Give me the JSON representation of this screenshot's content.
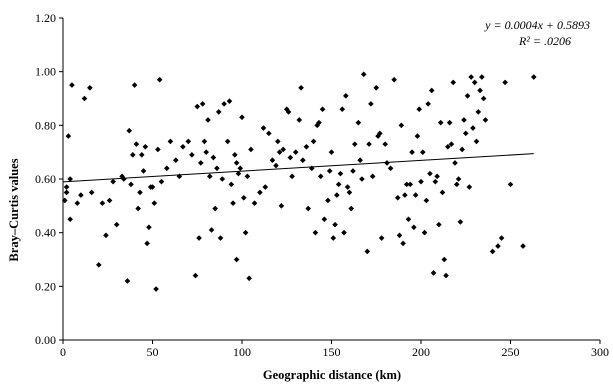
{
  "chart_data": {
    "type": "scatter",
    "title": "",
    "xlabel": "Geographic distance (km)",
    "ylabel": "Bray–Curtis values",
    "xlim": [
      0,
      300
    ],
    "ylim": [
      0,
      1.2
    ],
    "x_ticks": [
      "0",
      "50",
      "100",
      "150",
      "200",
      "250",
      "300"
    ],
    "y_ticks": [
      "0.00",
      "0.20",
      "0.40",
      "0.60",
      "0.80",
      "1.00",
      "1.20"
    ],
    "grid": false,
    "legend": "none",
    "marker": "diamond",
    "marker_color": "#000000",
    "trendline": {
      "slope": 0.0004,
      "intercept": 0.5893,
      "x_range": [
        0,
        263
      ]
    },
    "annotations": {
      "equation": "y = 0.0004x + 0.5893",
      "r_squared": "R² = .0206"
    },
    "points": [
      [
        1,
        0.52
      ],
      [
        2,
        0.57
      ],
      [
        2,
        0.55
      ],
      [
        3,
        0.76
      ],
      [
        4,
        0.45
      ],
      [
        4,
        0.6
      ],
      [
        5,
        0.95
      ],
      [
        8,
        0.51
      ],
      [
        10,
        0.54
      ],
      [
        12,
        0.9
      ],
      [
        15,
        0.94
      ],
      [
        16,
        0.55
      ],
      [
        20,
        0.28
      ],
      [
        22,
        0.51
      ],
      [
        24,
        0.39
      ],
      [
        26,
        0.52
      ],
      [
        28,
        0.59
      ],
      [
        30,
        0.43
      ],
      [
        33,
        0.61
      ],
      [
        34,
        0.6
      ],
      [
        36,
        0.22
      ],
      [
        37,
        0.78
      ],
      [
        38,
        0.58
      ],
      [
        39,
        0.69
      ],
      [
        40,
        0.95
      ],
      [
        41,
        0.73
      ],
      [
        42,
        0.49
      ],
      [
        43,
        0.55
      ],
      [
        44,
        0.69
      ],
      [
        45,
        0.63
      ],
      [
        46,
        0.72
      ],
      [
        47,
        0.36
      ],
      [
        48,
        0.42
      ],
      [
        49,
        0.57
      ],
      [
        50,
        0.57
      ],
      [
        51,
        0.51
      ],
      [
        52,
        0.19
      ],
      [
        53,
        0.71
      ],
      [
        54,
        0.97
      ],
      [
        55,
        0.59
      ],
      [
        58,
        0.64
      ],
      [
        60,
        0.74
      ],
      [
        63,
        0.67
      ],
      [
        65,
        0.61
      ],
      [
        67,
        0.72
      ],
      [
        70,
        0.74
      ],
      [
        72,
        0.69
      ],
      [
        74,
        0.24
      ],
      [
        75,
        0.87
      ],
      [
        76,
        0.38
      ],
      [
        77,
        0.66
      ],
      [
        78,
        0.88
      ],
      [
        79,
        0.74
      ],
      [
        80,
        0.7
      ],
      [
        81,
        0.82
      ],
      [
        82,
        0.61
      ],
      [
        83,
        0.41
      ],
      [
        84,
        0.68
      ],
      [
        85,
        0.49
      ],
      [
        86,
        0.64
      ],
      [
        87,
        0.85
      ],
      [
        88,
        0.38
      ],
      [
        89,
        0.6
      ],
      [
        90,
        0.88
      ],
      [
        92,
        0.74
      ],
      [
        93,
        0.89
      ],
      [
        94,
        0.58
      ],
      [
        95,
        0.51
      ],
      [
        96,
        0.69
      ],
      [
        97,
        0.3
      ],
      [
        97,
        0.66
      ],
      [
        98,
        0.62
      ],
      [
        99,
        0.64
      ],
      [
        100,
        0.83
      ],
      [
        101,
        0.53
      ],
      [
        102,
        0.4
      ],
      [
        103,
        0.61
      ],
      [
        104,
        0.23
      ],
      [
        105,
        0.71
      ],
      [
        107,
        0.51
      ],
      [
        110,
        0.55
      ],
      [
        112,
        0.79
      ],
      [
        113,
        0.57
      ],
      [
        115,
        0.77
      ],
      [
        117,
        0.67
      ],
      [
        119,
        0.65
      ],
      [
        120,
        0.74
      ],
      [
        121,
        0.7
      ],
      [
        122,
        0.5
      ],
      [
        123,
        0.71
      ],
      [
        125,
        0.86
      ],
      [
        126,
        0.85
      ],
      [
        127,
        0.68
      ],
      [
        128,
        0.61
      ],
      [
        130,
        0.7
      ],
      [
        132,
        0.82
      ],
      [
        133,
        0.94
      ],
      [
        134,
        0.67
      ],
      [
        136,
        0.72
      ],
      [
        137,
        0.49
      ],
      [
        139,
        0.64
      ],
      [
        140,
        0.74
      ],
      [
        141,
        0.4
      ],
      [
        142,
        0.8
      ],
      [
        143,
        0.81
      ],
      [
        144,
        0.61
      ],
      [
        145,
        0.86
      ],
      [
        146,
        0.45
      ],
      [
        148,
        0.52
      ],
      [
        149,
        0.63
      ],
      [
        150,
        0.7
      ],
      [
        151,
        0.38
      ],
      [
        152,
        0.43
      ],
      [
        153,
        0.54
      ],
      [
        154,
        0.58
      ],
      [
        155,
        0.62
      ],
      [
        156,
        0.86
      ],
      [
        157,
        0.4
      ],
      [
        158,
        0.91
      ],
      [
        159,
        0.57
      ],
      [
        160,
        0.55
      ],
      [
        161,
        0.49
      ],
      [
        162,
        0.63
      ],
      [
        163,
        0.73
      ],
      [
        165,
        0.81
      ],
      [
        166,
        0.67
      ],
      [
        167,
        0.6
      ],
      [
        168,
        0.99
      ],
      [
        170,
        0.33
      ],
      [
        171,
        0.73
      ],
      [
        172,
        0.88
      ],
      [
        173,
        0.61
      ],
      [
        175,
        0.94
      ],
      [
        176,
        0.76
      ],
      [
        177,
        0.77
      ],
      [
        178,
        0.38
      ],
      [
        180,
        0.73
      ],
      [
        181,
        0.66
      ],
      [
        183,
        0.64
      ],
      [
        185,
        0.97
      ],
      [
        187,
        0.53
      ],
      [
        188,
        0.39
      ],
      [
        189,
        0.8
      ],
      [
        190,
        0.36
      ],
      [
        191,
        0.54
      ],
      [
        192,
        0.58
      ],
      [
        193,
        0.45
      ],
      [
        194,
        0.58
      ],
      [
        195,
        0.7
      ],
      [
        196,
        0.42
      ],
      [
        197,
        0.54
      ],
      [
        198,
        0.76
      ],
      [
        199,
        0.86
      ],
      [
        200,
        0.59
      ],
      [
        201,
        0.7
      ],
      [
        202,
        0.4
      ],
      [
        203,
        0.52
      ],
      [
        204,
        0.88
      ],
      [
        205,
        0.62
      ],
      [
        206,
        0.93
      ],
      [
        207,
        0.25
      ],
      [
        208,
        0.59
      ],
      [
        209,
        0.61
      ],
      [
        210,
        0.43
      ],
      [
        211,
        0.81
      ],
      [
        212,
        0.55
      ],
      [
        213,
        0.3
      ],
      [
        214,
        0.24
      ],
      [
        215,
        0.72
      ],
      [
        216,
        0.81
      ],
      [
        217,
        0.73
      ],
      [
        218,
        0.96
      ],
      [
        219,
        0.66
      ],
      [
        220,
        0.58
      ],
      [
        221,
        0.6
      ],
      [
        222,
        0.44
      ],
      [
        223,
        0.71
      ],
      [
        224,
        0.82
      ],
      [
        225,
        0.77
      ],
      [
        226,
        0.91
      ],
      [
        227,
        0.57
      ],
      [
        228,
        0.98
      ],
      [
        229,
        0.79
      ],
      [
        230,
        0.96
      ],
      [
        231,
        0.74
      ],
      [
        232,
        0.85
      ],
      [
        233,
        0.93
      ],
      [
        234,
        0.98
      ],
      [
        235,
        0.9
      ],
      [
        236,
        0.82
      ],
      [
        240,
        0.33
      ],
      [
        243,
        0.35
      ],
      [
        245,
        0.38
      ],
      [
        247,
        0.96
      ],
      [
        250,
        0.58
      ],
      [
        257,
        0.35
      ],
      [
        263,
        0.98
      ]
    ]
  }
}
